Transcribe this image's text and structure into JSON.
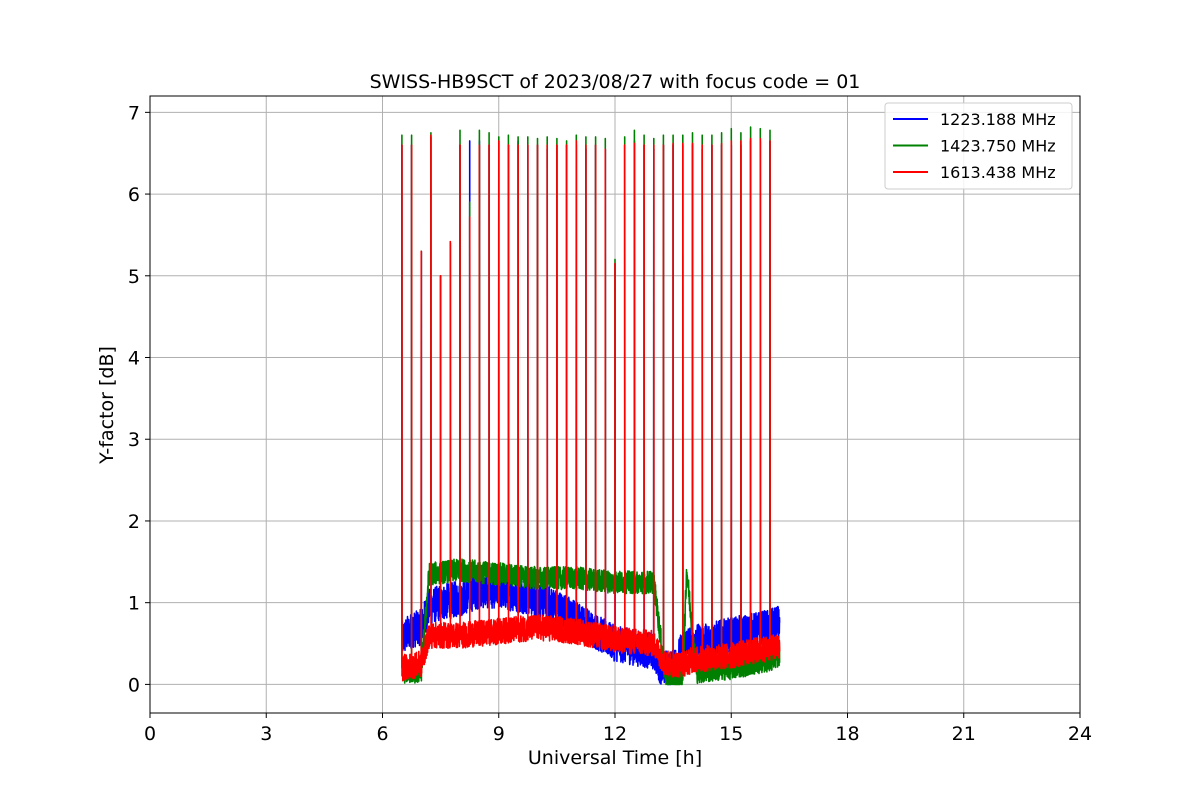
{
  "chart_data": {
    "type": "line",
    "title": "SWISS-HB9SCT of 2023/08/27 with focus code = 01",
    "xlabel": "Universal Time [h]",
    "ylabel": "Y-factor [dB]",
    "xlim": [
      0,
      24
    ],
    "ylim": [
      -0.35,
      7.2
    ],
    "xticks": [
      0,
      3,
      6,
      9,
      12,
      15,
      18,
      21,
      24
    ],
    "yticks": [
      0,
      1,
      2,
      3,
      4,
      5,
      6,
      7
    ],
    "grid": true,
    "legend_position": "top-right",
    "spike_times": [
      6.5,
      6.75,
      7.0,
      7.25,
      7.5,
      7.75,
      8.0,
      8.25,
      8.5,
      8.75,
      9.0,
      9.25,
      9.5,
      9.75,
      10.0,
      10.25,
      10.5,
      10.75,
      11.0,
      11.25,
      11.5,
      11.75,
      12.0,
      12.25,
      12.5,
      12.75,
      13.0,
      13.25,
      13.5,
      13.75,
      14.0,
      14.25,
      14.5,
      14.75,
      15.0,
      15.25,
      15.5,
      15.75,
      16.0
    ],
    "series": [
      {
        "name": "1223.188 MHz",
        "color": "#0000ff",
        "x": [
          6.5,
          6.7,
          7.0,
          7.2,
          7.5,
          8.0,
          8.5,
          9.0,
          9.5,
          10.0,
          10.5,
          11.0,
          11.5,
          12.0,
          12.5,
          13.0,
          13.2,
          13.5,
          13.8,
          14.0,
          14.5,
          15.0,
          15.5,
          16.0,
          16.25
        ],
        "y": [
          0.55,
          0.65,
          0.7,
          0.95,
          1.0,
          1.05,
          1.15,
          1.15,
          1.1,
          1.05,
          0.95,
          0.8,
          0.65,
          0.5,
          0.45,
          0.4,
          0.2,
          0.2,
          0.5,
          0.5,
          0.55,
          0.6,
          0.65,
          0.7,
          0.75
        ],
        "noise": 0.22,
        "spike_peaks": [
          6.6,
          6.6,
          5.3,
          6.7,
          5.0,
          5.4,
          6.6,
          6.65,
          6.65,
          6.6,
          6.65,
          6.6,
          6.65,
          6.6,
          6.6,
          6.55,
          6.6,
          6.6,
          6.6,
          6.55,
          6.6,
          6.55,
          5.15,
          6.6,
          6.65,
          6.6,
          6.55,
          6.6,
          6.6,
          6.6,
          6.6,
          6.55,
          6.6,
          6.6,
          6.6,
          6.6,
          6.65,
          6.65,
          6.65
        ]
      },
      {
        "name": "1423.750 MHz",
        "color": "#008000",
        "x": [
          6.5,
          7.0,
          7.2,
          8.0,
          9.0,
          10.0,
          11.0,
          12.0,
          13.0,
          13.3,
          13.75,
          13.85,
          14.1,
          15.0,
          16.0,
          16.25
        ],
        "y": [
          0.15,
          0.15,
          1.35,
          1.4,
          1.35,
          1.3,
          1.3,
          1.25,
          1.25,
          0.1,
          0.1,
          1.4,
          0.15,
          0.2,
          0.3,
          0.35
        ],
        "noise": 0.14,
        "spike_peaks": [
          6.72,
          6.72,
          5.3,
          6.75,
          5.0,
          5.4,
          6.78,
          5.9,
          6.78,
          6.75,
          6.7,
          6.72,
          6.7,
          6.7,
          6.68,
          6.7,
          6.68,
          6.65,
          6.72,
          6.7,
          6.7,
          6.68,
          5.2,
          6.7,
          6.78,
          6.72,
          6.68,
          6.72,
          6.72,
          6.72,
          6.75,
          6.72,
          6.72,
          6.75,
          6.8,
          6.75,
          6.82,
          6.8,
          6.78
        ]
      },
      {
        "name": "1613.438 MHz",
        "color": "#ff0000",
        "x": [
          6.5,
          7.0,
          7.2,
          8.0,
          9.0,
          10.0,
          11.0,
          12.0,
          13.0,
          13.3,
          13.75,
          14.0,
          15.0,
          16.0,
          16.25
        ],
        "y": [
          0.2,
          0.25,
          0.6,
          0.6,
          0.65,
          0.7,
          0.65,
          0.55,
          0.5,
          0.25,
          0.25,
          0.3,
          0.35,
          0.45,
          0.45
        ],
        "noise": 0.16,
        "spike_peaks": [
          6.6,
          6.6,
          5.3,
          6.72,
          5.0,
          5.42,
          6.6,
          5.72,
          6.6,
          6.6,
          6.65,
          6.6,
          6.6,
          6.6,
          6.6,
          6.6,
          6.6,
          6.6,
          6.65,
          6.6,
          6.6,
          6.55,
          5.15,
          6.6,
          6.62,
          6.6,
          6.6,
          6.6,
          6.62,
          6.62,
          6.62,
          6.6,
          6.6,
          6.62,
          6.65,
          6.65,
          6.68,
          6.68,
          6.65
        ]
      }
    ]
  }
}
